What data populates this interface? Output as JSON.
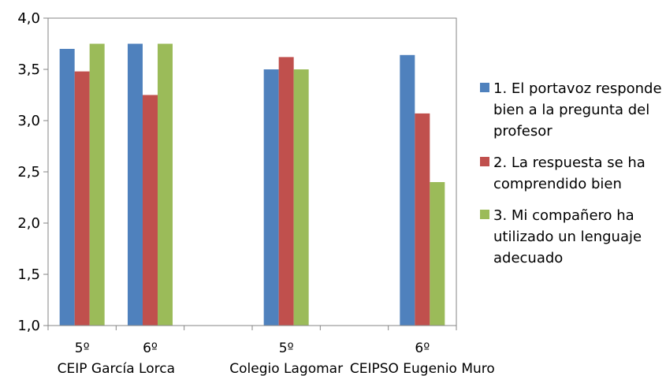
{
  "chart_data": {
    "type": "bar",
    "categories": [
      "5º",
      "6º",
      "",
      "5º",
      "",
      "6º"
    ],
    "groups": [
      {
        "label": "CEIP García Lorca",
        "categories": [
          "5º",
          "6º"
        ]
      },
      {
        "label": "Colegio Lagomar",
        "categories": [
          "5º"
        ]
      },
      {
        "label": "CEIPSO Eugenio Muro",
        "categories": [
          "6º"
        ]
      }
    ],
    "series": [
      {
        "name": "1. El portavoz responde bien a la pregunta del profesor",
        "color": "#4F81BD",
        "values": [
          3.7,
          3.75,
          null,
          3.5,
          null,
          3.64
        ]
      },
      {
        "name": "2. La respuesta se ha comprendido bien",
        "color": "#C0504D",
        "values": [
          3.48,
          3.25,
          null,
          3.62,
          null,
          3.07
        ]
      },
      {
        "name": "3. Mi compañero ha utilizado un lenguaje adecuado",
        "color": "#9BBB59",
        "values": [
          3.75,
          3.75,
          null,
          3.5,
          null,
          2.4
        ]
      }
    ],
    "ylim": [
      1.0,
      4.0
    ],
    "yticks": [
      "1,0",
      "1,5",
      "2,0",
      "2,5",
      "3,0",
      "3,5",
      "4,0"
    ],
    "grid": false,
    "legend": {
      "position": "right",
      "entries": [
        [
          "1. El portavoz responde",
          "bien a la pregunta del",
          "profesor"
        ],
        [
          "2. La respuesta se ha",
          "comprendido bien"
        ],
        [
          "3. Mi compañero ha",
          "utilizado un lenguaje",
          "adecuado"
        ]
      ]
    }
  }
}
